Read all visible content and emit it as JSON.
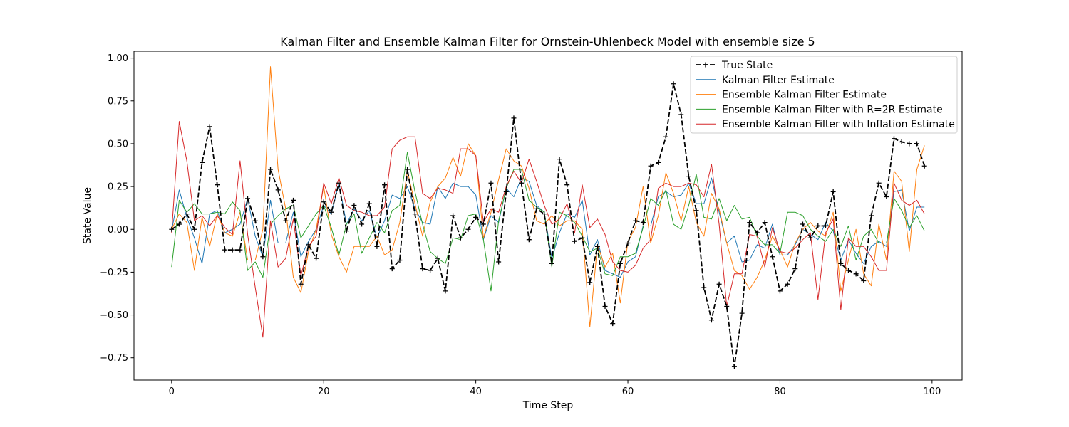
{
  "chart_data": {
    "type": "line",
    "title": "Kalman Filter and Ensemble Kalman Filter for Ornstein-Uhlenbeck Model with ensemble size 5",
    "xlabel": "Time Step",
    "ylabel": "State Value",
    "xlim": [
      -4.95,
      103.95
    ],
    "ylim": [
      -0.88,
      1.04
    ],
    "xticks": [
      0,
      20,
      40,
      60,
      80,
      100
    ],
    "yticks": [
      -0.75,
      -0.5,
      -0.25,
      0.0,
      0.25,
      0.5,
      0.75,
      1.0
    ],
    "xtick_labels": [
      "0",
      "20",
      "40",
      "60",
      "80",
      "100"
    ],
    "ytick_labels": [
      "−0.75",
      "−0.50",
      "−0.25",
      "0.00",
      "0.25",
      "0.50",
      "0.75",
      "1.00"
    ],
    "grid": false,
    "legend_position": "top-right",
    "series": [
      {
        "name": "True State",
        "color": "#000000",
        "style": "dashed-plus",
        "values": [
          0.0,
          0.03,
          0.09,
          0.0,
          0.39,
          0.6,
          0.26,
          -0.12,
          -0.12,
          -0.12,
          0.18,
          0.05,
          -0.16,
          0.35,
          0.23,
          0.05,
          0.17,
          -0.32,
          -0.09,
          -0.17,
          0.16,
          0.1,
          0.27,
          -0.01,
          0.14,
          0.03,
          0.15,
          -0.1,
          0.26,
          -0.23,
          -0.18,
          0.35,
          0.09,
          -0.23,
          -0.24,
          -0.17,
          -0.36,
          0.08,
          -0.05,
          0.0,
          0.07,
          0.03,
          0.27,
          -0.19,
          0.22,
          0.65,
          0.27,
          -0.06,
          0.12,
          0.09,
          -0.2,
          0.41,
          0.26,
          -0.07,
          -0.05,
          -0.31,
          -0.1,
          -0.45,
          -0.55,
          -0.2,
          -0.08,
          0.05,
          0.04,
          0.37,
          0.39,
          0.54,
          0.85,
          0.67,
          0.31,
          0.11,
          -0.34,
          -0.53,
          -0.32,
          -0.45,
          -0.8,
          -0.49,
          0.04,
          -0.02,
          0.04,
          -0.16,
          -0.36,
          -0.32,
          -0.23,
          0.03,
          -0.05,
          0.02,
          0.02,
          0.22,
          -0.2,
          -0.24,
          -0.26,
          -0.3,
          0.08,
          0.27,
          0.19,
          0.53,
          0.51,
          0.5,
          0.5,
          0.37
        ]
      },
      {
        "name": "Kalman Filter Estimate",
        "color": "#1f77b4",
        "style": "solid",
        "values": [
          -0.01,
          0.23,
          0.07,
          -0.05,
          -0.2,
          0.09,
          0.11,
          -0.02,
          0.0,
          0.03,
          0.18,
          -0.04,
          -0.16,
          0.17,
          -0.08,
          -0.08,
          0.1,
          -0.16,
          -0.07,
          0.0,
          0.14,
          0.09,
          0.27,
          0.03,
          0.12,
          0.05,
          0.11,
          -0.05,
          0.05,
          0.2,
          0.18,
          0.25,
          0.12,
          0.04,
          0.03,
          0.25,
          0.18,
          0.27,
          0.25,
          0.25,
          0.2,
          -0.06,
          0.08,
          0.04,
          0.24,
          0.19,
          0.3,
          0.28,
          0.14,
          0.1,
          -0.17,
          -0.02,
          0.09,
          0.07,
          0.17,
          -0.15,
          -0.06,
          -0.24,
          -0.26,
          -0.28,
          -0.19,
          -0.16,
          0.02,
          0.02,
          0.19,
          0.22,
          0.19,
          0.2,
          0.27,
          0.15,
          0.15,
          0.3,
          0.1,
          -0.08,
          -0.04,
          -0.19,
          -0.18,
          -0.09,
          -0.11,
          0.03,
          -0.15,
          -0.15,
          -0.09,
          0.0,
          -0.03,
          -0.06,
          0.04,
          -0.01,
          -0.18,
          -0.06,
          -0.14,
          -0.2,
          -0.1,
          -0.07,
          -0.1,
          0.22,
          0.23,
          -0.01,
          0.13,
          0.13
        ]
      },
      {
        "name": "Ensemble Kalman Filter Estimate",
        "color": "#ff7f0e",
        "style": "solid",
        "values": [
          0.0,
          0.09,
          0.04,
          -0.24,
          0.07,
          -0.1,
          0.09,
          -0.02,
          -0.04,
          0.1,
          -0.18,
          -0.18,
          0.0,
          0.95,
          0.35,
          0.12,
          -0.28,
          -0.37,
          -0.13,
          0.0,
          0.25,
          -0.03,
          -0.16,
          -0.25,
          -0.1,
          -0.1,
          -0.1,
          -0.04,
          -0.15,
          -0.12,
          0.04,
          0.34,
          0.15,
          -0.04,
          0.16,
          0.25,
          0.3,
          0.42,
          0.31,
          0.5,
          0.43,
          -0.05,
          0.1,
          0.29,
          0.47,
          0.4,
          0.37,
          0.24,
          0.05,
          0.03,
          0.08,
          0.02,
          0.05,
          0.05,
          0.0,
          -0.57,
          -0.09,
          -0.22,
          -0.14,
          -0.43,
          -0.07,
          0.01,
          0.25,
          -0.08,
          0.08,
          0.33,
          0.21,
          0.05,
          0.25,
          0.04,
          -0.04,
          0.21,
          0.12,
          -0.08,
          -0.24,
          -0.27,
          -0.35,
          -0.28,
          -0.18,
          -0.04,
          -0.12,
          -0.22,
          -0.08,
          0.0,
          0.04,
          -0.01,
          -0.04,
          0.1,
          -0.36,
          -0.18,
          0.0,
          -0.26,
          -0.33,
          0.03,
          -0.18,
          0.34,
          0.28,
          -0.13,
          0.35,
          0.49
        ]
      },
      {
        "name": "Ensemble Kalman Filter with R=2R Estimate",
        "color": "#2ca02c",
        "style": "solid",
        "values": [
          -0.22,
          0.17,
          0.1,
          0.15,
          0.09,
          0.09,
          0.1,
          0.09,
          0.16,
          0.11,
          -0.24,
          -0.19,
          -0.28,
          0.03,
          0.08,
          0.12,
          0.14,
          -0.05,
          0.02,
          0.09,
          0.14,
          0.01,
          -0.15,
          0.03,
          0.09,
          -0.14,
          -0.05,
          0.04,
          -0.02,
          0.11,
          0.14,
          0.45,
          0.22,
          0.03,
          -0.13,
          -0.17,
          -0.2,
          -0.05,
          -0.06,
          0.08,
          0.09,
          -0.06,
          -0.36,
          0.05,
          0.24,
          0.35,
          0.35,
          0.17,
          0.13,
          0.1,
          -0.22,
          0.1,
          0.08,
          0.04,
          -0.04,
          -0.13,
          -0.11,
          -0.26,
          -0.27,
          -0.16,
          -0.16,
          -0.14,
          0.01,
          0.18,
          0.14,
          0.23,
          0.03,
          0.0,
          0.14,
          0.32,
          0.07,
          0.06,
          0.18,
          0.05,
          0.14,
          0.06,
          0.07,
          -0.04,
          -0.09,
          -0.09,
          -0.14,
          0.1,
          0.1,
          0.08,
          0.0,
          -0.04,
          -0.07,
          0.0,
          -0.1,
          0.02,
          -0.18,
          -0.04,
          0.0,
          -0.08,
          -0.08,
          0.18,
          0.11,
          0.01,
          0.08,
          -0.01
        ]
      },
      {
        "name": "Ensemble Kalman Filter with Inflation Estimate",
        "color": "#d62728",
        "style": "solid",
        "values": [
          -0.02,
          0.63,
          0.4,
          0.05,
          0.08,
          0.02,
          0.08,
          0.01,
          -0.03,
          0.4,
          -0.03,
          -0.34,
          -0.63,
          0.05,
          -0.22,
          -0.17,
          0.06,
          -0.27,
          -0.1,
          -0.04,
          0.27,
          0.15,
          0.3,
          0.14,
          0.11,
          0.1,
          0.08,
          0.08,
          0.13,
          0.47,
          0.52,
          0.54,
          0.54,
          0.21,
          0.18,
          0.24,
          0.23,
          0.21,
          0.47,
          0.47,
          0.43,
          0.04,
          0.12,
          0.1,
          0.25,
          0.34,
          0.27,
          0.41,
          0.28,
          0.14,
          0.03,
          0.06,
          0.15,
          -0.02,
          0.26,
          0.01,
          0.06,
          -0.03,
          -0.19,
          -0.24,
          -0.25,
          -0.21,
          -0.11,
          -0.06,
          0.24,
          0.27,
          0.25,
          0.25,
          0.27,
          0.26,
          0.19,
          0.38,
          0.03,
          -0.45,
          -0.26,
          -0.26,
          -0.03,
          -0.04,
          -0.22,
          0.01,
          -0.13,
          -0.14,
          -0.11,
          -0.06,
          -0.02,
          -0.41,
          -0.02,
          0.06,
          -0.47,
          -0.05,
          -0.1,
          -0.1,
          -0.16,
          -0.24,
          -0.24,
          0.27,
          0.17,
          0.14,
          0.17,
          0.09
        ]
      }
    ]
  }
}
